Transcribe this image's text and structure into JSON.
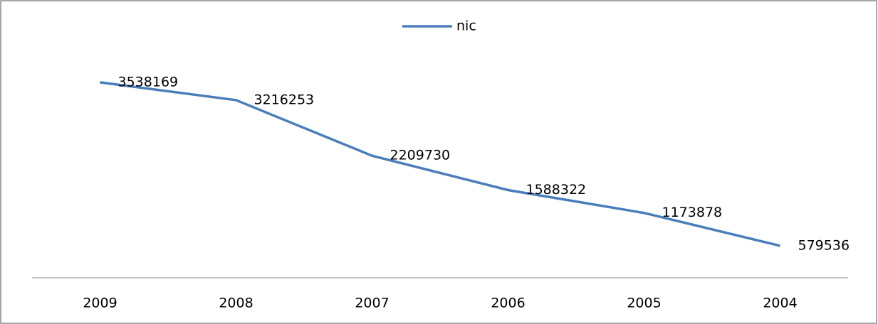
{
  "chart_data": {
    "type": "line",
    "categories": [
      "2009",
      "2008",
      "2007",
      "2006",
      "2005",
      "2004"
    ],
    "series": [
      {
        "name": "nic",
        "color": "#4a7ebb",
        "values": [
          3538169,
          3216253,
          2209730,
          1588322,
          1173878,
          579536
        ]
      }
    ],
    "ylim": [
      0,
      4000000
    ],
    "grid": false,
    "legend": "top"
  }
}
